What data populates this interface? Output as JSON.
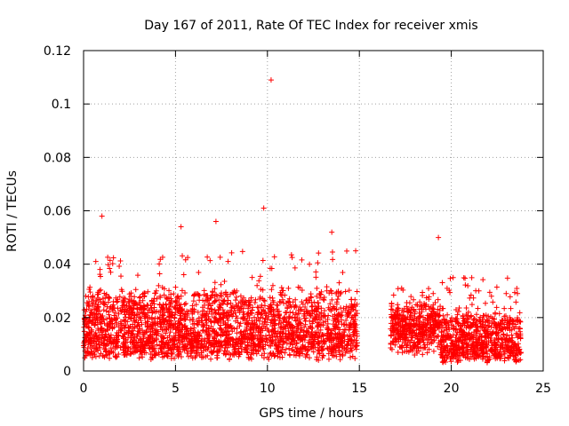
{
  "chart_data": {
    "type": "scatter",
    "title": "Day 167 of 2011, Rate Of TEC Index for receiver xmis",
    "xlabel": "GPS time / hours",
    "ylabel": "ROTI / TECUs",
    "xlim": [
      0,
      25
    ],
    "ylim": [
      0,
      0.12
    ],
    "xticks": [
      0,
      5,
      10,
      15,
      20,
      25
    ],
    "yticks": [
      0,
      0.02,
      0.04,
      0.06,
      0.08,
      0.1,
      0.12
    ],
    "xtick_labels": [
      "0",
      "5",
      "10",
      "15",
      "20",
      "25"
    ],
    "ytick_labels": [
      "0",
      "0.02",
      "0.04",
      "0.06",
      "0.08",
      "0.1",
      "0.12"
    ],
    "grid": true,
    "marker": "+",
    "color": "#ff0000",
    "series": [
      {
        "name": "ROTI",
        "segments": [
          {
            "t_start": 0.0,
            "t_end": 14.9,
            "base": 0.008,
            "spread": 0.02,
            "peak": 0.045
          },
          {
            "t_start": 16.7,
            "t_end": 19.4,
            "base": 0.012,
            "spread": 0.012,
            "peak": 0.032
          },
          {
            "t_start": 19.4,
            "t_end": 23.8,
            "base": 0.006,
            "spread": 0.014,
            "peak": 0.035
          }
        ],
        "outliers": [
          {
            "x": 10.2,
            "y": 0.109
          },
          {
            "x": 9.8,
            "y": 0.061
          },
          {
            "x": 1.0,
            "y": 0.058
          },
          {
            "x": 7.2,
            "y": 0.056
          },
          {
            "x": 5.3,
            "y": 0.054
          },
          {
            "x": 13.5,
            "y": 0.052
          },
          {
            "x": 19.3,
            "y": 0.05
          },
          {
            "x": 14.8,
            "y": 0.045
          },
          {
            "x": 17.3,
            "y": 0.031
          },
          {
            "x": 20.1,
            "y": 0.035
          },
          {
            "x": 21.5,
            "y": 0.03
          },
          {
            "x": 23.6,
            "y": 0.029
          },
          {
            "x": 18.0,
            "y": 0.006
          },
          {
            "x": 20.5,
            "y": 0.004
          }
        ]
      }
    ]
  }
}
